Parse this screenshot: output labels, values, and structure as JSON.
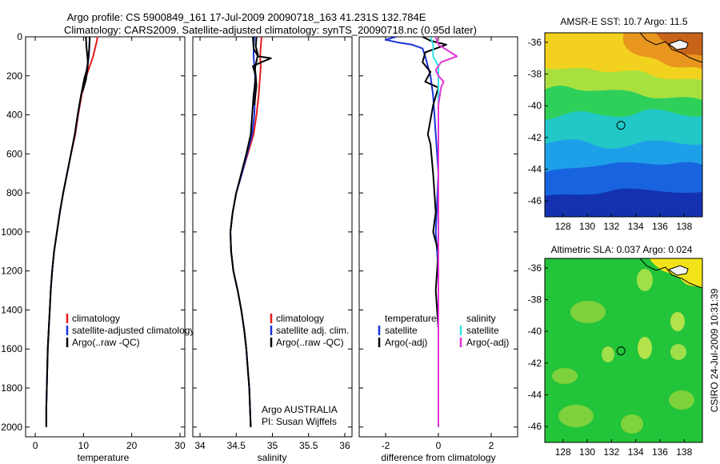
{
  "figure": {
    "title_line1": "Argo profile: CS 5900849_161 17-Jul-2009 20090718_163 41.231S 132.784E",
    "title_line2": "Climatology: CARS2009. Satellite-adjusted climatology: synTS_20090718.nc (0.95d later)",
    "side_label": "CSIRO 24-Jul-2009 10:31:39"
  },
  "colors": {
    "climatology": "#e41a1c",
    "satellite": "#1a33d9",
    "argo": "#000000",
    "sal_satellite": "#33e0e6",
    "sal_argo": "#e033d6"
  },
  "chart_data": [
    {
      "type": "line",
      "name": "temperature-profile",
      "xlabel": "temperature",
      "xlim": [
        -2,
        31
      ],
      "ylim": [
        2050,
        0
      ],
      "xticks": [
        "0",
        "10",
        "20",
        "30"
      ],
      "yticks": [
        "0",
        "200",
        "400",
        "600",
        "800",
        "1000",
        "1200",
        "1400",
        "1600",
        "1800",
        "2000"
      ],
      "legend": [
        "climatology",
        "satellite-adjusted climatology",
        "Argo(..raw -QC)"
      ],
      "series": [
        {
          "name": "climatology",
          "color_key": "climatology",
          "points": [
            [
              12.9,
              0
            ],
            [
              12.7,
              30
            ],
            [
              12.4,
              60
            ],
            [
              12.0,
              100
            ],
            [
              11.3,
              150
            ],
            [
              10.6,
              200
            ],
            [
              9.6,
              300
            ],
            [
              8.9,
              400
            ],
            [
              8.3,
              500
            ],
            [
              7.4,
              600
            ],
            [
              6.6,
              700
            ],
            [
              5.8,
              800
            ],
            [
              5.1,
              900
            ],
            [
              4.5,
              1000
            ],
            [
              3.9,
              1100
            ],
            [
              3.5,
              1200
            ],
            [
              3.2,
              1300
            ],
            [
              3.0,
              1400
            ],
            [
              2.8,
              1500
            ],
            [
              2.6,
              1600
            ],
            [
              2.5,
              1700
            ],
            [
              2.4,
              1800
            ],
            [
              2.3,
              1900
            ],
            [
              2.3,
              2000
            ]
          ]
        },
        {
          "name": "satellite-adjusted climatology",
          "color_key": "satellite",
          "points": [
            [
              11.3,
              0
            ],
            [
              11.2,
              50
            ],
            [
              11.1,
              100
            ],
            [
              10.8,
              150
            ],
            [
              10.4,
              200
            ],
            [
              9.5,
              300
            ],
            [
              8.8,
              400
            ],
            [
              8.2,
              500
            ],
            [
              7.4,
              600
            ],
            [
              6.6,
              700
            ],
            [
              5.8,
              800
            ],
            [
              5.1,
              900
            ],
            [
              4.5,
              1000
            ],
            [
              3.9,
              1100
            ],
            [
              3.5,
              1200
            ],
            [
              3.2,
              1300
            ],
            [
              3.0,
              1400
            ],
            [
              2.8,
              1500
            ],
            [
              2.6,
              1600
            ],
            [
              2.5,
              1700
            ],
            [
              2.4,
              1800
            ],
            [
              2.3,
              1900
            ],
            [
              2.3,
              2000
            ]
          ]
        },
        {
          "name": "Argo(..raw -QC)",
          "color_key": "argo",
          "points": [
            [
              10.5,
              0
            ],
            [
              10.6,
              50
            ],
            [
              10.8,
              100
            ],
            [
              10.9,
              130
            ],
            [
              10.7,
              170
            ],
            [
              10.2,
              210
            ],
            [
              9.5,
              300
            ],
            [
              8.8,
              400
            ],
            [
              8.2,
              500
            ],
            [
              7.4,
              600
            ],
            [
              6.6,
              700
            ],
            [
              5.8,
              800
            ],
            [
              5.1,
              900
            ],
            [
              4.5,
              1000
            ],
            [
              3.9,
              1100
            ],
            [
              3.5,
              1200
            ],
            [
              3.2,
              1300
            ],
            [
              3.0,
              1400
            ],
            [
              2.8,
              1500
            ],
            [
              2.6,
              1600
            ],
            [
              2.5,
              1700
            ],
            [
              2.4,
              1800
            ],
            [
              2.3,
              1900
            ],
            [
              2.3,
              2000
            ]
          ]
        },
        {
          "name": "Argo(..raw -QC)",
          "color_key": "argo",
          "points": [
            [
              11.3,
              0
            ],
            [
              11.2,
              60
            ],
            [
              11.0,
              110
            ],
            [
              10.8,
              170
            ],
            [
              10.5,
              220
            ],
            [
              9.8,
              280
            ]
          ]
        }
      ]
    },
    {
      "type": "line",
      "name": "salinity-profile",
      "xlabel": "salinity",
      "xlim": [
        33.9,
        36.1
      ],
      "ylim": [
        2050,
        0
      ],
      "xticks": [
        "34",
        "34.5",
        "35",
        "35.5",
        "36"
      ],
      "legend": [
        "climatology",
        "satellite adj. clim.",
        "Argo(..raw -QC)"
      ],
      "annotation": [
        "Argo AUSTRALIA",
        "PI: Susan Wijffels"
      ],
      "series": [
        {
          "name": "climatology",
          "color_key": "climatology",
          "points": [
            [
              34.85,
              0
            ],
            [
              34.84,
              50
            ],
            [
              34.83,
              100
            ],
            [
              34.84,
              150
            ],
            [
              34.83,
              200
            ],
            [
              34.81,
              300
            ],
            [
              34.78,
              400
            ],
            [
              34.74,
              500
            ],
            [
              34.66,
              600
            ],
            [
              34.58,
              700
            ],
            [
              34.5,
              800
            ],
            [
              34.45,
              900
            ],
            [
              34.42,
              1000
            ],
            [
              34.43,
              1100
            ],
            [
              34.46,
              1200
            ],
            [
              34.52,
              1300
            ],
            [
              34.57,
              1400
            ],
            [
              34.61,
              1500
            ],
            [
              34.64,
              1600
            ],
            [
              34.66,
              1700
            ],
            [
              34.68,
              1800
            ],
            [
              34.69,
              1900
            ],
            [
              34.7,
              2000
            ]
          ]
        },
        {
          "name": "satellite adj. clim.",
          "color_key": "satellite",
          "points": [
            [
              34.75,
              0
            ],
            [
              34.74,
              50
            ],
            [
              34.74,
              100
            ],
            [
              34.76,
              200
            ],
            [
              34.76,
              300
            ],
            [
              34.75,
              400
            ],
            [
              34.72,
              500
            ],
            [
              34.65,
              600
            ],
            [
              34.58,
              700
            ],
            [
              34.5,
              800
            ],
            [
              34.45,
              900
            ],
            [
              34.42,
              1000
            ],
            [
              34.43,
              1100
            ],
            [
              34.46,
              1200
            ],
            [
              34.52,
              1300
            ],
            [
              34.57,
              1400
            ],
            [
              34.61,
              1500
            ],
            [
              34.64,
              1600
            ],
            [
              34.66,
              1700
            ],
            [
              34.68,
              1800
            ],
            [
              34.69,
              1900
            ],
            [
              34.7,
              2000
            ]
          ]
        },
        {
          "name": "Argo(..raw -QC)",
          "color_key": "argo",
          "points": [
            [
              34.73,
              0
            ],
            [
              34.74,
              60
            ],
            [
              34.8,
              100
            ],
            [
              34.98,
              110
            ],
            [
              34.85,
              130
            ],
            [
              34.73,
              150
            ],
            [
              34.77,
              200
            ],
            [
              34.74,
              300
            ],
            [
              34.72,
              400
            ],
            [
              34.7,
              500
            ],
            [
              34.64,
              600
            ],
            [
              34.57,
              700
            ],
            [
              34.5,
              800
            ],
            [
              34.45,
              900
            ],
            [
              34.42,
              1000
            ],
            [
              34.43,
              1100
            ],
            [
              34.46,
              1200
            ],
            [
              34.52,
              1300
            ],
            [
              34.57,
              1400
            ],
            [
              34.61,
              1500
            ],
            [
              34.64,
              1600
            ],
            [
              34.66,
              1700
            ],
            [
              34.68,
              1800
            ],
            [
              34.69,
              1900
            ],
            [
              34.7,
              2000
            ]
          ]
        },
        {
          "name": "Argo(..raw -QC)",
          "color_key": "argo",
          "points": [
            [
              34.78,
              0
            ],
            [
              34.77,
              50
            ],
            [
              34.8,
              90
            ],
            [
              34.76,
              160
            ],
            [
              34.78,
              250
            ],
            [
              34.75,
              350
            ]
          ]
        }
      ]
    },
    {
      "type": "line",
      "name": "difference-profile",
      "xlabel": "difference from climatology",
      "xlim": [
        -3,
        3
      ],
      "ylim": [
        2050,
        0
      ],
      "xticks": [
        "-2",
        "0",
        "2"
      ],
      "legend": [
        {
          "group": "temperature",
          "items": [
            "satellite",
            "Argo(-adj)"
          ]
        },
        {
          "group": "salinity",
          "items": [
            "satellite",
            "Argo(-adj)"
          ]
        }
      ],
      "series": [
        {
          "name": "temperature satellite",
          "color_key": "satellite",
          "points": [
            [
              -1.6,
              0
            ],
            [
              -2.0,
              15
            ],
            [
              -1.5,
              30
            ],
            [
              -1.0,
              40
            ],
            [
              -0.6,
              60
            ],
            [
              -0.5,
              100
            ],
            [
              -0.4,
              150
            ],
            [
              -0.3,
              200
            ],
            [
              -0.2,
              300
            ],
            [
              -0.1,
              500
            ],
            [
              0.0,
              700
            ],
            [
              -0.1,
              1000
            ],
            [
              0.0,
              1200
            ],
            [
              0.0,
              2000
            ]
          ]
        },
        {
          "name": "temperature Argo(-adj)",
          "color_key": "argo",
          "points": [
            [
              -0.6,
              0
            ],
            [
              -0.3,
              20
            ],
            [
              0.3,
              40
            ],
            [
              -0.5,
              80
            ],
            [
              -0.6,
              130
            ],
            [
              -0.3,
              180
            ],
            [
              -0.5,
              230
            ],
            [
              0.0,
              260
            ],
            [
              -0.2,
              350
            ],
            [
              -0.4,
              500
            ],
            [
              -0.3,
              550
            ],
            [
              -0.2,
              700
            ],
            [
              -0.1,
              900
            ],
            [
              -0.2,
              1000
            ],
            [
              0.0,
              1100
            ],
            [
              -0.1,
              1300
            ],
            [
              0.0,
              1500
            ],
            [
              0.0,
              2000
            ]
          ]
        },
        {
          "name": "salinity satellite",
          "color_key": "sal_satellite",
          "points": [
            [
              -0.3,
              0
            ],
            [
              -0.2,
              40
            ],
            [
              -0.2,
              100
            ],
            [
              0.0,
              150
            ],
            [
              0.0,
              300
            ],
            [
              0.0,
              2000
            ]
          ]
        },
        {
          "name": "salinity Argo(-adj)",
          "color_key": "sal_argo",
          "points": [
            [
              -0.1,
              0
            ],
            [
              0.0,
              40
            ],
            [
              0.7,
              100
            ],
            [
              0.1,
              130
            ],
            [
              -0.1,
              170
            ],
            [
              0.0,
              200
            ],
            [
              0.2,
              230
            ],
            [
              0.1,
              260
            ],
            [
              0.0,
              350
            ],
            [
              0.0,
              500
            ],
            [
              0.0,
              2000
            ]
          ]
        }
      ]
    },
    {
      "type": "heatmap",
      "name": "amsr-e-sst-map",
      "title": "AMSR-E SST: 10.7 Argo: 11.5",
      "xlim": [
        126.5,
        139.5
      ],
      "ylim": [
        -47,
        -35.4
      ],
      "xticks": [
        "128",
        "130",
        "132",
        "134",
        "136",
        "138"
      ],
      "yticks": [
        "-36",
        "-38",
        "-40",
        "-42",
        "-44",
        "-46"
      ],
      "float_position": [
        132.784,
        -41.231
      ]
    },
    {
      "type": "heatmap",
      "name": "altimetric-sla-map",
      "title": "Altimetric SLA: 0.037 Argo: 0.024",
      "xlim": [
        126.5,
        139.5
      ],
      "ylim": [
        -47,
        -35.4
      ],
      "xticks": [
        "128",
        "130",
        "132",
        "134",
        "136",
        "138"
      ],
      "yticks": [
        "-36",
        "-38",
        "-40",
        "-42",
        "-44",
        "-46"
      ],
      "float_position": [
        132.784,
        -41.231
      ]
    }
  ]
}
